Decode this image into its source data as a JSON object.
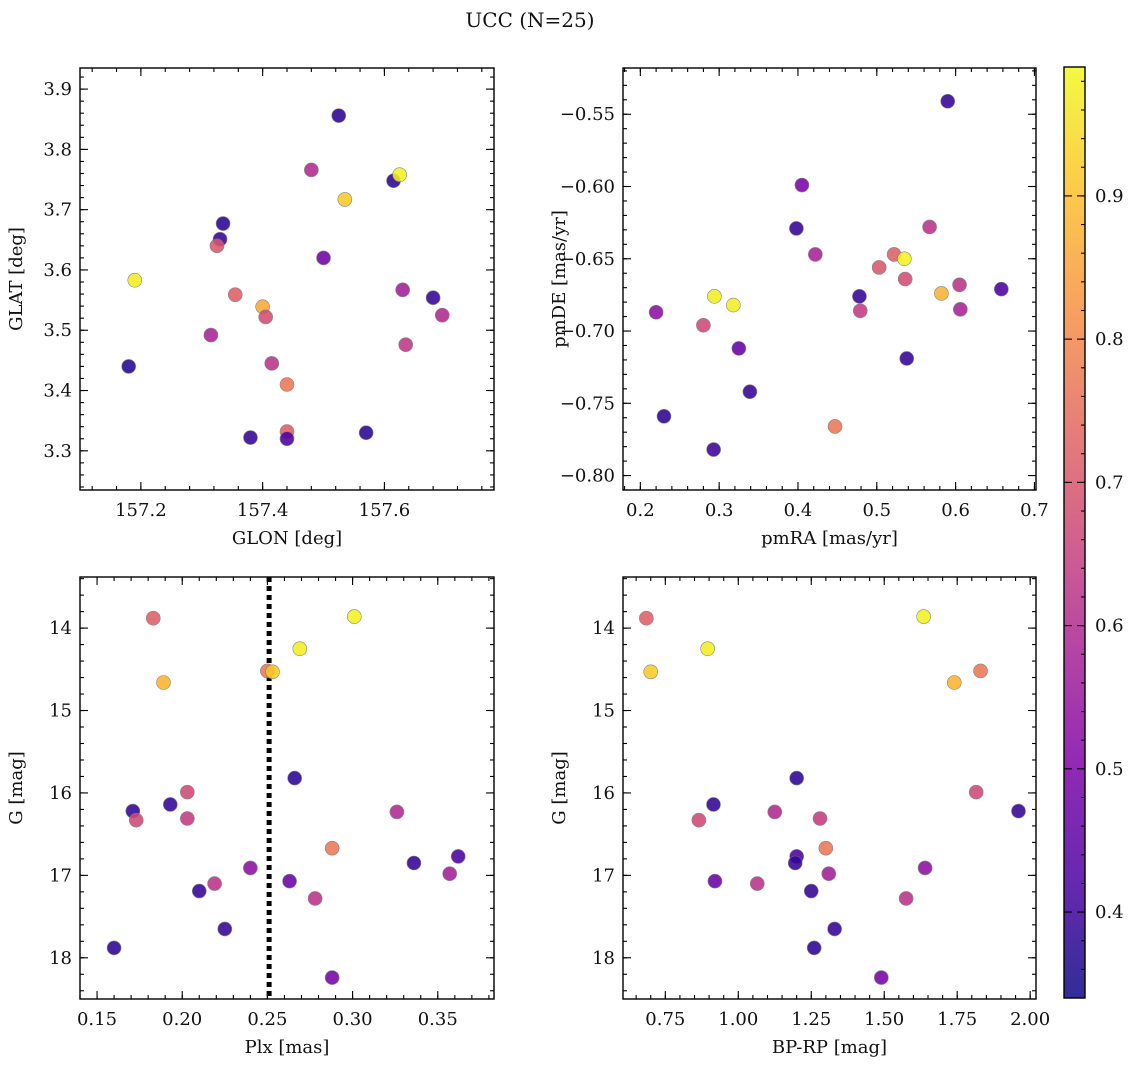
{
  "figure": {
    "title": "UCC (N=25)"
  },
  "colorbar": {
    "colormap": "plasma",
    "vmin": 0.34,
    "vmax": 0.99,
    "ticks": [
      0.4,
      0.5,
      0.6,
      0.7,
      0.8,
      0.9
    ]
  },
  "chart_data": [
    {
      "type": "scatter",
      "xlabel": "GLON [deg]",
      "ylabel": "GLAT [deg]",
      "xlim": [
        157.1,
        157.78
      ],
      "ylim": [
        3.235,
        3.935
      ],
      "y_inverted": false,
      "xticks": [
        {
          "v": 157.2,
          "t": "157.2"
        },
        {
          "v": 157.4,
          "t": "157.4"
        },
        {
          "v": 157.6,
          "t": "157.6"
        }
      ],
      "yticks": [
        {
          "v": 3.3,
          "t": "3.3"
        },
        {
          "v": 3.4,
          "t": "3.4"
        },
        {
          "v": 3.5,
          "t": "3.5"
        },
        {
          "v": 3.6,
          "t": "3.6"
        },
        {
          "v": 3.7,
          "t": "3.7"
        },
        {
          "v": 3.8,
          "t": "3.8"
        },
        {
          "v": 3.9,
          "t": "3.9"
        }
      ],
      "x_minor": 0.04,
      "y_minor": 0.02,
      "points": [
        {
          "x": 157.19,
          "y": 3.583,
          "c": 0.97
        },
        {
          "x": 157.18,
          "y": 3.44,
          "c": 0.37
        },
        {
          "x": 157.525,
          "y": 3.856,
          "c": 0.38
        },
        {
          "x": 157.48,
          "y": 3.766,
          "c": 0.6
        },
        {
          "x": 157.615,
          "y": 3.748,
          "c": 0.38
        },
        {
          "x": 157.625,
          "y": 3.758,
          "c": 0.98
        },
        {
          "x": 157.535,
          "y": 3.717,
          "c": 0.92
        },
        {
          "x": 157.335,
          "y": 3.677,
          "c": 0.38
        },
        {
          "x": 157.33,
          "y": 3.651,
          "c": 0.39
        },
        {
          "x": 157.325,
          "y": 3.64,
          "c": 0.7
        },
        {
          "x": 157.5,
          "y": 3.62,
          "c": 0.48
        },
        {
          "x": 157.355,
          "y": 3.559,
          "c": 0.72
        },
        {
          "x": 157.4,
          "y": 3.539,
          "c": 0.86
        },
        {
          "x": 157.405,
          "y": 3.522,
          "c": 0.68
        },
        {
          "x": 157.315,
          "y": 3.492,
          "c": 0.58
        },
        {
          "x": 157.63,
          "y": 3.567,
          "c": 0.57
        },
        {
          "x": 157.68,
          "y": 3.554,
          "c": 0.39
        },
        {
          "x": 157.695,
          "y": 3.525,
          "c": 0.6
        },
        {
          "x": 157.635,
          "y": 3.476,
          "c": 0.63
        },
        {
          "x": 157.415,
          "y": 3.445,
          "c": 0.62
        },
        {
          "x": 157.44,
          "y": 3.41,
          "c": 0.77
        },
        {
          "x": 157.44,
          "y": 3.332,
          "c": 0.72
        },
        {
          "x": 157.38,
          "y": 3.322,
          "c": 0.39
        },
        {
          "x": 157.44,
          "y": 3.32,
          "c": 0.42
        },
        {
          "x": 157.57,
          "y": 3.33,
          "c": 0.38
        }
      ]
    },
    {
      "type": "scatter",
      "xlabel": "pmRA [mas/yr]",
      "ylabel": "pmDE [mas/yr]",
      "xlim": [
        0.178,
        0.702
      ],
      "ylim": [
        -0.81,
        -0.518
      ],
      "y_inverted": false,
      "xticks": [
        {
          "v": 0.2,
          "t": "0.2"
        },
        {
          "v": 0.3,
          "t": "0.3"
        },
        {
          "v": 0.4,
          "t": "0.4"
        },
        {
          "v": 0.5,
          "t": "0.5"
        },
        {
          "v": 0.6,
          "t": "0.6"
        },
        {
          "v": 0.7,
          "t": "0.7"
        }
      ],
      "yticks": [
        {
          "v": -0.8,
          "t": "−0.80"
        },
        {
          "v": -0.75,
          "t": "−0.75"
        },
        {
          "v": -0.7,
          "t": "−0.70"
        },
        {
          "v": -0.65,
          "t": "−0.65"
        },
        {
          "v": -0.6,
          "t": "−0.60"
        },
        {
          "v": -0.55,
          "t": "−0.55"
        }
      ],
      "x_minor": 0.02,
      "y_minor": 0.01,
      "points": [
        {
          "x": 0.59,
          "y": -0.541,
          "c": 0.39
        },
        {
          "x": 0.405,
          "y": -0.599,
          "c": 0.5
        },
        {
          "x": 0.398,
          "y": -0.629,
          "c": 0.39
        },
        {
          "x": 0.567,
          "y": -0.628,
          "c": 0.62
        },
        {
          "x": 0.422,
          "y": -0.647,
          "c": 0.58
        },
        {
          "x": 0.522,
          "y": -0.647,
          "c": 0.72
        },
        {
          "x": 0.535,
          "y": -0.65,
          "c": 0.98
        },
        {
          "x": 0.503,
          "y": -0.656,
          "c": 0.7
        },
        {
          "x": 0.536,
          "y": -0.664,
          "c": 0.68
        },
        {
          "x": 0.605,
          "y": -0.668,
          "c": 0.62
        },
        {
          "x": 0.658,
          "y": -0.671,
          "c": 0.42
        },
        {
          "x": 0.582,
          "y": -0.674,
          "c": 0.88
        },
        {
          "x": 0.294,
          "y": -0.676,
          "c": 0.97
        },
        {
          "x": 0.478,
          "y": -0.676,
          "c": 0.39
        },
        {
          "x": 0.318,
          "y": -0.682,
          "c": 0.97
        },
        {
          "x": 0.606,
          "y": -0.685,
          "c": 0.58
        },
        {
          "x": 0.479,
          "y": -0.686,
          "c": 0.64
        },
        {
          "x": 0.22,
          "y": -0.687,
          "c": 0.53
        },
        {
          "x": 0.28,
          "y": -0.696,
          "c": 0.67
        },
        {
          "x": 0.325,
          "y": -0.712,
          "c": 0.46
        },
        {
          "x": 0.538,
          "y": -0.719,
          "c": 0.39
        },
        {
          "x": 0.339,
          "y": -0.742,
          "c": 0.39
        },
        {
          "x": 0.23,
          "y": -0.759,
          "c": 0.38
        },
        {
          "x": 0.447,
          "y": -0.766,
          "c": 0.77
        },
        {
          "x": 0.293,
          "y": -0.782,
          "c": 0.4
        }
      ]
    },
    {
      "type": "scatter",
      "xlabel": "Plx [mas]",
      "ylabel": "G [mag]",
      "xlim": [
        0.14,
        0.383
      ],
      "ylim": [
        18.5,
        13.38
      ],
      "y_inverted": true,
      "xticks": [
        {
          "v": 0.15,
          "t": "0.15"
        },
        {
          "v": 0.2,
          "t": "0.20"
        },
        {
          "v": 0.25,
          "t": "0.25"
        },
        {
          "v": 0.3,
          "t": "0.30"
        },
        {
          "v": 0.35,
          "t": "0.35"
        }
      ],
      "yticks": [
        {
          "v": 14,
          "t": "14"
        },
        {
          "v": 15,
          "t": "15"
        },
        {
          "v": 16,
          "t": "16"
        },
        {
          "v": 17,
          "t": "17"
        },
        {
          "v": 18,
          "t": "18"
        }
      ],
      "x_minor": 0.01,
      "y_minor": 0.2,
      "vline": 0.251,
      "points": [
        {
          "x": 0.183,
          "y": 13.88,
          "c": 0.72
        },
        {
          "x": 0.301,
          "y": 13.86,
          "c": 0.98
        },
        {
          "x": 0.269,
          "y": 14.25,
          "c": 0.97
        },
        {
          "x": 0.25,
          "y": 14.52,
          "c": 0.77
        },
        {
          "x": 0.253,
          "y": 14.53,
          "c": 0.92
        },
        {
          "x": 0.189,
          "y": 14.66,
          "c": 0.88
        },
        {
          "x": 0.266,
          "y": 15.82,
          "c": 0.38
        },
        {
          "x": 0.203,
          "y": 15.99,
          "c": 0.67
        },
        {
          "x": 0.193,
          "y": 16.14,
          "c": 0.39
        },
        {
          "x": 0.171,
          "y": 16.22,
          "c": 0.39
        },
        {
          "x": 0.326,
          "y": 16.23,
          "c": 0.6
        },
        {
          "x": 0.173,
          "y": 16.33,
          "c": 0.67
        },
        {
          "x": 0.203,
          "y": 16.31,
          "c": 0.64
        },
        {
          "x": 0.288,
          "y": 16.67,
          "c": 0.77
        },
        {
          "x": 0.362,
          "y": 16.77,
          "c": 0.42
        },
        {
          "x": 0.336,
          "y": 16.85,
          "c": 0.39
        },
        {
          "x": 0.24,
          "y": 16.91,
          "c": 0.53
        },
        {
          "x": 0.357,
          "y": 16.98,
          "c": 0.57
        },
        {
          "x": 0.263,
          "y": 17.07,
          "c": 0.47
        },
        {
          "x": 0.219,
          "y": 17.1,
          "c": 0.62
        },
        {
          "x": 0.21,
          "y": 17.19,
          "c": 0.39
        },
        {
          "x": 0.278,
          "y": 17.28,
          "c": 0.62
        },
        {
          "x": 0.225,
          "y": 17.65,
          "c": 0.39
        },
        {
          "x": 0.16,
          "y": 17.88,
          "c": 0.38
        },
        {
          "x": 0.288,
          "y": 18.24,
          "c": 0.49
        }
      ]
    },
    {
      "type": "scatter",
      "xlabel": "BP-RP [mag]",
      "ylabel": "G [mag]",
      "xlim": [
        0.605,
        2.02
      ],
      "ylim": [
        18.5,
        13.38
      ],
      "y_inverted": true,
      "xticks": [
        {
          "v": 0.75,
          "t": "0.75"
        },
        {
          "v": 1.0,
          "t": "1.00"
        },
        {
          "v": 1.25,
          "t": "1.25"
        },
        {
          "v": 1.5,
          "t": "1.50"
        },
        {
          "v": 1.75,
          "t": "1.75"
        },
        {
          "v": 2.0,
          "t": "2.00"
        }
      ],
      "yticks": [
        {
          "v": 14,
          "t": "14"
        },
        {
          "v": 15,
          "t": "15"
        },
        {
          "v": 16,
          "t": "16"
        },
        {
          "v": 17,
          "t": "17"
        },
        {
          "v": 18,
          "t": "18"
        }
      ],
      "x_minor": 0.05,
      "y_minor": 0.2,
      "points": [
        {
          "x": 0.685,
          "y": 13.88,
          "c": 0.72
        },
        {
          "x": 1.635,
          "y": 13.86,
          "c": 0.98
        },
        {
          "x": 0.895,
          "y": 14.25,
          "c": 0.97
        },
        {
          "x": 0.7,
          "y": 14.53,
          "c": 0.92
        },
        {
          "x": 1.83,
          "y": 14.52,
          "c": 0.77
        },
        {
          "x": 1.74,
          "y": 14.66,
          "c": 0.88
        },
        {
          "x": 1.2,
          "y": 15.82,
          "c": 0.38
        },
        {
          "x": 1.815,
          "y": 15.99,
          "c": 0.67
        },
        {
          "x": 0.915,
          "y": 16.14,
          "c": 0.39
        },
        {
          "x": 1.96,
          "y": 16.22,
          "c": 0.39
        },
        {
          "x": 1.125,
          "y": 16.23,
          "c": 0.6
        },
        {
          "x": 0.865,
          "y": 16.33,
          "c": 0.67
        },
        {
          "x": 1.28,
          "y": 16.31,
          "c": 0.64
        },
        {
          "x": 1.3,
          "y": 16.67,
          "c": 0.77
        },
        {
          "x": 1.2,
          "y": 16.77,
          "c": 0.42
        },
        {
          "x": 1.195,
          "y": 16.85,
          "c": 0.39
        },
        {
          "x": 1.64,
          "y": 16.91,
          "c": 0.53
        },
        {
          "x": 1.31,
          "y": 16.98,
          "c": 0.57
        },
        {
          "x": 0.92,
          "y": 17.07,
          "c": 0.47
        },
        {
          "x": 1.065,
          "y": 17.1,
          "c": 0.62
        },
        {
          "x": 1.25,
          "y": 17.19,
          "c": 0.39
        },
        {
          "x": 1.575,
          "y": 17.28,
          "c": 0.62
        },
        {
          "x": 1.33,
          "y": 17.65,
          "c": 0.39
        },
        {
          "x": 1.26,
          "y": 17.88,
          "c": 0.38
        },
        {
          "x": 1.49,
          "y": 18.24,
          "c": 0.49
        }
      ]
    }
  ]
}
